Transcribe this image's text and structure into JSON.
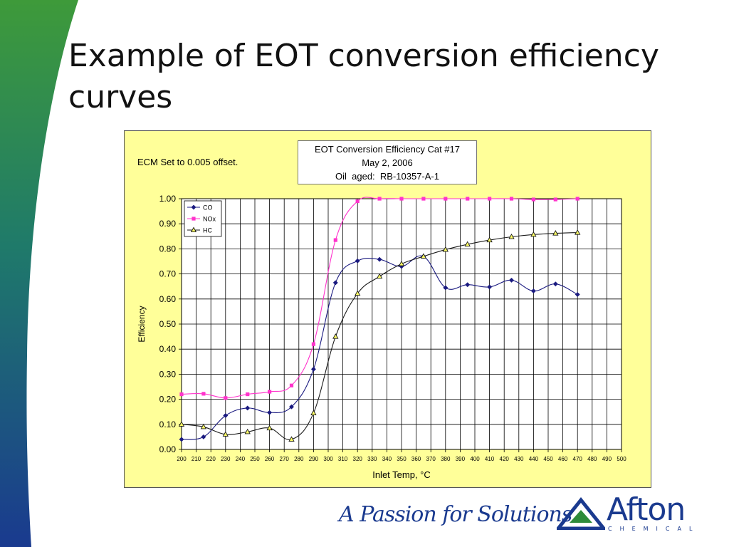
{
  "slide": {
    "title": "Example of EOT conversion efficiency curves"
  },
  "chart_box": {
    "note": "ECM Set to 0.005 offset.",
    "title_lines": [
      "EOT Conversion Efficiency Cat #17",
      "May 2, 2006",
      "Oil  aged:  RB-10357-A-1"
    ]
  },
  "footer": {
    "slogan": "A Passion for Solutions",
    "logo_word": "Afton",
    "logo_sub": "CHEMICAL"
  },
  "colors": {
    "frame_bg": "#ffff99",
    "co": "#1a1a80",
    "nox": "#ff33cc",
    "hc": "#1a1a1a",
    "brand_blue": "#1a3a8f",
    "brand_green": "#2e8b3a"
  },
  "chart_data": {
    "type": "line",
    "title": "EOT Conversion Efficiency Cat #17",
    "xlabel": "Inlet Temp, °C",
    "ylabel": "Efficiency",
    "xlim": [
      200,
      500
    ],
    "ylim": [
      0,
      1.0
    ],
    "x_ticks": [
      200,
      210,
      220,
      230,
      240,
      250,
      260,
      270,
      280,
      290,
      300,
      310,
      320,
      330,
      340,
      350,
      360,
      370,
      380,
      390,
      400,
      410,
      420,
      430,
      440,
      450,
      460,
      470,
      480,
      490,
      500
    ],
    "y_ticks": [
      0.0,
      0.1,
      0.2,
      0.3,
      0.4,
      0.5,
      0.6,
      0.7,
      0.8,
      0.9,
      1.0
    ],
    "y_tick_labels": [
      "0.00",
      "0.10",
      "0.20",
      "0.30",
      "0.40",
      "0.50",
      "0.60",
      "0.70",
      "0.80",
      "0.90",
      "1.00"
    ],
    "grid": true,
    "legend": "top-left",
    "series": [
      {
        "name": "CO",
        "marker": "diamond",
        "x": [
          200,
          215,
          230,
          245,
          260,
          275,
          290,
          305,
          320,
          335,
          350,
          365,
          380,
          395,
          410,
          425,
          440,
          455,
          470
        ],
        "y": [
          0.04,
          0.05,
          0.135,
          0.165,
          0.147,
          0.17,
          0.32,
          0.665,
          0.752,
          0.758,
          0.73,
          0.77,
          0.645,
          0.657,
          0.648,
          0.675,
          0.632,
          0.66,
          0.618
        ]
      },
      {
        "name": "NOx",
        "marker": "square",
        "x": [
          200,
          215,
          230,
          245,
          260,
          275,
          290,
          305,
          320,
          335,
          350,
          365,
          380,
          395,
          410,
          425,
          440,
          455,
          470
        ],
        "y": [
          0.22,
          0.222,
          0.205,
          0.22,
          0.23,
          0.255,
          0.42,
          0.835,
          0.99,
          1.0,
          1.0,
          1.0,
          1.0,
          1.0,
          1.0,
          1.0,
          0.997,
          0.997,
          1.0
        ]
      },
      {
        "name": "HC",
        "marker": "triangle",
        "x": [
          200,
          215,
          230,
          245,
          260,
          275,
          290,
          305,
          320,
          335,
          350,
          365,
          380,
          395,
          410,
          425,
          440,
          455,
          470
        ],
        "y": [
          0.1,
          0.09,
          0.06,
          0.07,
          0.085,
          0.04,
          0.145,
          0.45,
          0.622,
          0.69,
          0.74,
          0.77,
          0.797,
          0.818,
          0.835,
          0.848,
          0.857,
          0.862,
          0.865
        ]
      }
    ]
  }
}
